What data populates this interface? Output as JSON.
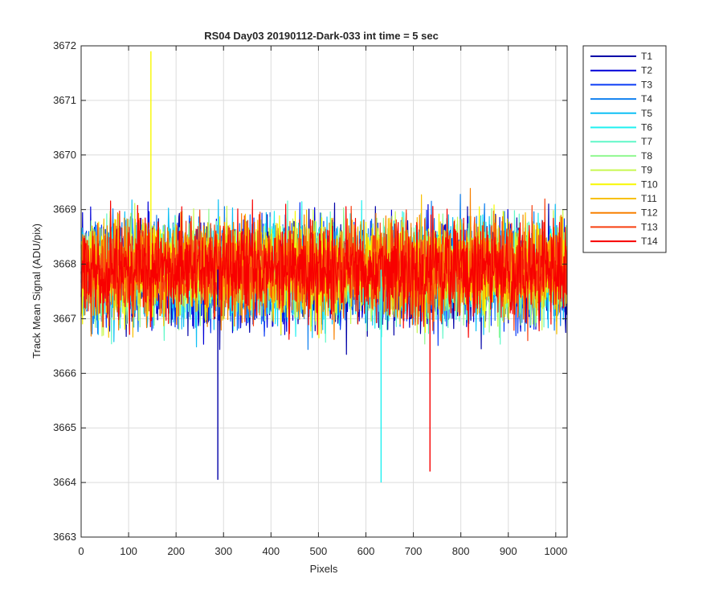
{
  "chart_data": {
    "type": "line",
    "title": "RS04 Day03 20190112-Dark-033 int time = 5 sec",
    "xlabel": "Pixels",
    "ylabel": "Track Mean Signal (ADU/pix)",
    "xlim": [
      0,
      1024
    ],
    "ylim": [
      3663,
      3672
    ],
    "x_ticks": [
      0,
      100,
      200,
      300,
      400,
      500,
      600,
      700,
      800,
      900,
      1000
    ],
    "y_ticks": [
      3663,
      3664,
      3665,
      3666,
      3667,
      3668,
      3669,
      3670,
      3671,
      3672
    ],
    "x_tick_labels": [
      "0",
      "100",
      "200",
      "300",
      "400",
      "500",
      "600",
      "700",
      "800",
      "900",
      "1000"
    ],
    "y_tick_labels": [
      "3663",
      "3664",
      "3665",
      "3666",
      "3667",
      "3668",
      "3669",
      "3670",
      "3671",
      "3672"
    ],
    "grid": true,
    "legend_position": "outside-top-right",
    "n_points": 1024,
    "approx_mean": 3667.9,
    "approx_noise_std": 0.95,
    "notable_values": [
      {
        "series": "T10",
        "x": 147,
        "y": 3671.9
      },
      {
        "series": "T6",
        "x": 632,
        "y": 3664.0
      },
      {
        "series": "T1",
        "x": 288,
        "y": 3664.05
      },
      {
        "series": "T14",
        "x": 735,
        "y": 3664.2
      }
    ],
    "series": [
      {
        "name": "T1",
        "color": "#0000A8",
        "low_bias": -0.55
      },
      {
        "name": "T2",
        "color": "#0000D8",
        "low_bias": -0.45
      },
      {
        "name": "T3",
        "color": "#0B3CF5",
        "low_bias": -0.38
      },
      {
        "name": "T4",
        "color": "#1080F0",
        "low_bias": -0.3
      },
      {
        "name": "T5",
        "color": "#0FC0F5",
        "low_bias": -0.22
      },
      {
        "name": "T6",
        "color": "#1FF0F0",
        "low_bias": -0.15
      },
      {
        "name": "T7",
        "color": "#60F8C8",
        "low_bias": -0.08
      },
      {
        "name": "T8",
        "color": "#90F890",
        "low_bias": 0.0
      },
      {
        "name": "T9",
        "color": "#C8F850",
        "low_bias": 0.05
      },
      {
        "name": "T10",
        "color": "#F8F800",
        "low_bias": 0.1
      },
      {
        "name": "T11",
        "color": "#F8C000",
        "low_bias": 0.12
      },
      {
        "name": "T12",
        "color": "#F88000",
        "low_bias": 0.1
      },
      {
        "name": "T13",
        "color": "#F84010",
        "low_bias": 0.08
      },
      {
        "name": "T14",
        "color": "#F80000",
        "low_bias": 0.05
      }
    ]
  }
}
